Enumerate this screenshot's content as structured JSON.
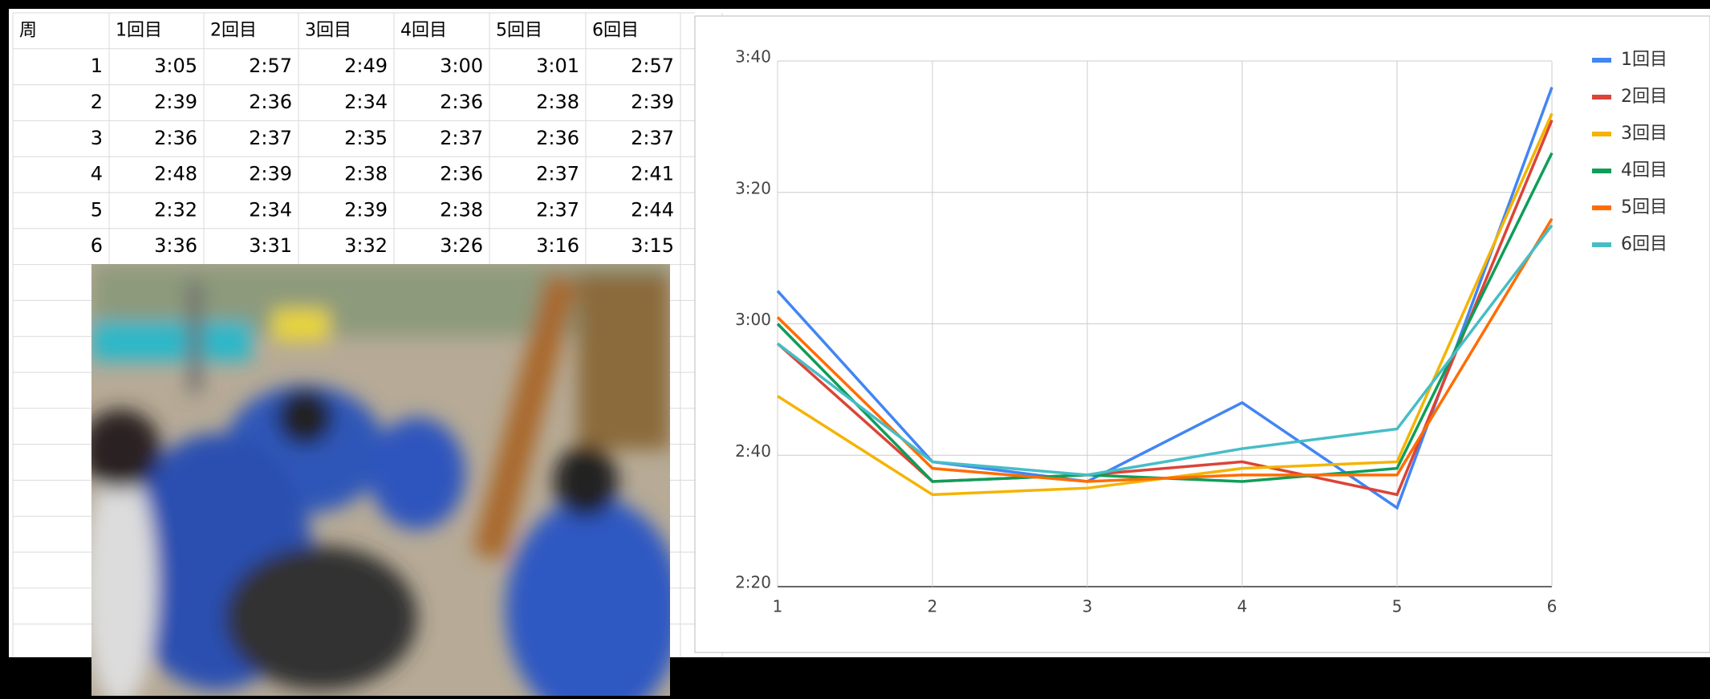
{
  "table": {
    "header": [
      "周",
      "1回目",
      "2回目",
      "3回目",
      "4回目",
      "5回目",
      "6回目"
    ],
    "rows": [
      [
        "1",
        "3:05",
        "2:57",
        "2:49",
        "3:00",
        "3:01",
        "2:57"
      ],
      [
        "2",
        "2:39",
        "2:36",
        "2:34",
        "2:36",
        "2:38",
        "2:39"
      ],
      [
        "3",
        "2:36",
        "2:37",
        "2:35",
        "2:37",
        "2:36",
        "2:37"
      ],
      [
        "4",
        "2:48",
        "2:39",
        "2:38",
        "2:36",
        "2:37",
        "2:41"
      ],
      [
        "5",
        "2:32",
        "2:34",
        "2:39",
        "2:38",
        "2:37",
        "2:44"
      ],
      [
        "6",
        "3:36",
        "3:31",
        "3:32",
        "3:26",
        "3:16",
        "3:15"
      ]
    ]
  },
  "chart_data": {
    "type": "line",
    "x": [
      1,
      2,
      3,
      4,
      5,
      6
    ],
    "xlim": [
      1,
      6
    ],
    "xticks": [
      1,
      2,
      3,
      4,
      5,
      6
    ],
    "ylim": [
      140,
      220
    ],
    "yticks": [
      {
        "value": 140,
        "label": "2:20"
      },
      {
        "value": 160,
        "label": "2:40"
      },
      {
        "value": 180,
        "label": "3:00"
      },
      {
        "value": 200,
        "label": "3:20"
      },
      {
        "value": 220,
        "label": "3:40"
      }
    ],
    "grid": true,
    "legend": "right",
    "series": [
      {
        "name": "1回目",
        "color": "#4285f4",
        "values": [
          185,
          159,
          156,
          168,
          152,
          216
        ]
      },
      {
        "name": "2回目",
        "color": "#db4437",
        "values": [
          177,
          156,
          157,
          159,
          154,
          211
        ]
      },
      {
        "name": "3回目",
        "color": "#f4b400",
        "values": [
          169,
          154,
          155,
          158,
          159,
          212
        ]
      },
      {
        "name": "4回目",
        "color": "#0f9d58",
        "values": [
          180,
          156,
          157,
          156,
          158,
          206
        ]
      },
      {
        "name": "5回目",
        "color": "#ff6d01",
        "values": [
          181,
          158,
          156,
          157,
          157,
          196
        ]
      },
      {
        "name": "6回目",
        "color": "#46bdc6",
        "values": [
          177,
          159,
          157,
          161,
          164,
          195
        ]
      }
    ]
  }
}
